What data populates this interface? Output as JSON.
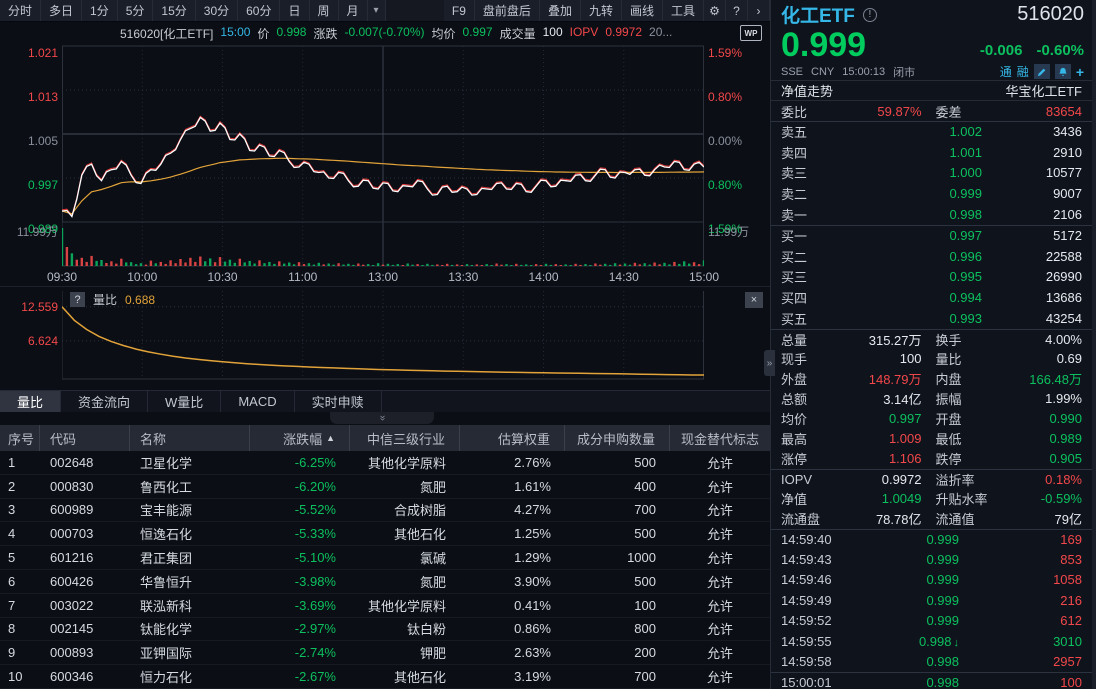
{
  "palette": {
    "red": "#f2484b",
    "green": "#0cc05f",
    "chart_red": "#d84343",
    "chart_green": "#0ba35a",
    "yellow": "#e2a33a",
    "cyan": "#34b7e6",
    "white_line": "#ffffff",
    "big_price_green": "#00cd5e"
  },
  "toolbar": {
    "left_tabs": [
      "分时",
      "多日",
      "1分",
      "5分",
      "15分",
      "30分",
      "60分",
      "日",
      "周",
      "月"
    ],
    "caret": "▾",
    "right_items": [
      "F9",
      "盘前盘后",
      "叠加",
      "九转",
      "画线",
      "工具"
    ],
    "gear": "⚙",
    "help": "?",
    "chevron": "›"
  },
  "chart_info": {
    "segments": [
      {
        "text": "516020[化工ETF]",
        "color": "text"
      },
      {
        "text": "15:00",
        "color": "cyan"
      },
      {
        "text": "价",
        "color": "text"
      },
      {
        "text": "0.998",
        "color": "green"
      },
      {
        "text": "涨跌",
        "color": "text"
      },
      {
        "text": "-0.007(-0.70%)",
        "color": "green"
      },
      {
        "text": "均价",
        "color": "text"
      },
      {
        "text": "0.997",
        "color": "green"
      },
      {
        "text": "成交量",
        "color": "text"
      },
      {
        "text": "100",
        "color": "white"
      },
      {
        "text": "IOPV",
        "color": "red"
      },
      {
        "text": "0.9972",
        "color": "red"
      },
      {
        "text": "20...",
        "color": "dim"
      }
    ],
    "wp_badge": "WP"
  },
  "main_axis": {
    "left": [
      {
        "text": "1.021",
        "color": "red"
      },
      {
        "text": "1.013",
        "color": "red"
      },
      {
        "text": "1.005",
        "color": "dim"
      },
      {
        "text": "0.997",
        "color": "green"
      },
      {
        "text": "0.989",
        "color": "green"
      }
    ],
    "right": [
      {
        "text": "1.59%",
        "color": "red"
      },
      {
        "text": "0.80%",
        "color": "red"
      },
      {
        "text": "0.00%",
        "color": "dim"
      },
      {
        "text": "0.80%",
        "color": "green"
      },
      {
        "text": "1.59%",
        "color": "green"
      }
    ],
    "vol_label": "11.99万",
    "x_ticks": [
      "09:30",
      "10:00",
      "10:30",
      "11:00",
      "13:00",
      "13:30",
      "14:00",
      "14:30",
      "15:00"
    ]
  },
  "subchart": {
    "help": "?",
    "label": "量比",
    "value": "0.688",
    "y_ticks": [
      "12.559",
      "6.624"
    ],
    "close": "×"
  },
  "handles": {
    "down": "»",
    "right": "»"
  },
  "bottom_tabs": [
    {
      "label": "量比",
      "active": true
    },
    {
      "label": "资金流向",
      "active": false
    },
    {
      "label": "W量比",
      "active": false
    },
    {
      "label": "MACD",
      "active": false
    },
    {
      "label": "实时申赎",
      "active": false
    }
  ],
  "table": {
    "headers": [
      "序号",
      "代码",
      "名称",
      "涨跌幅",
      "中信三级行业",
      "估算权重",
      "成分申购数量",
      "现金替代标志"
    ],
    "sort_arrow": "▲",
    "rows": [
      [
        "1",
        "002648",
        "卫星化学",
        "-6.25%",
        "其他化学原料",
        "2.76%",
        "500",
        "允许"
      ],
      [
        "2",
        "000830",
        "鲁西化工",
        "-6.20%",
        "氮肥",
        "1.61%",
        "400",
        "允许"
      ],
      [
        "3",
        "600989",
        "宝丰能源",
        "-5.52%",
        "合成树脂",
        "4.27%",
        "700",
        "允许"
      ],
      [
        "4",
        "000703",
        "恒逸石化",
        "-5.33%",
        "其他石化",
        "1.25%",
        "500",
        "允许"
      ],
      [
        "5",
        "601216",
        "君正集团",
        "-5.10%",
        "氯碱",
        "1.29%",
        "1000",
        "允许"
      ],
      [
        "6",
        "600426",
        "华鲁恒升",
        "-3.98%",
        "氮肥",
        "3.90%",
        "500",
        "允许"
      ],
      [
        "7",
        "003022",
        "联泓新科",
        "-3.69%",
        "其他化学原料",
        "0.41%",
        "100",
        "允许"
      ],
      [
        "8",
        "002145",
        "钛能化学",
        "-2.97%",
        "钛白粉",
        "0.86%",
        "800",
        "允许"
      ],
      [
        "9",
        "000893",
        "亚钾国际",
        "-2.74%",
        "钾肥",
        "2.63%",
        "200",
        "允许"
      ],
      [
        "10",
        "600346",
        "恒力石化",
        "-2.67%",
        "其他石化",
        "3.19%",
        "700",
        "允许"
      ]
    ]
  },
  "quote_panel": {
    "name": "化工ETF",
    "info_icon": "!",
    "code": "516020",
    "price": "0.999",
    "change": "-0.006",
    "change_pct": "-0.60%",
    "status": {
      "exchange": "SSE",
      "currency": "CNY",
      "time": "15:00:13",
      "state": "闭市",
      "badges": [
        "通",
        "融"
      ],
      "plus": "+"
    },
    "nav_row": {
      "left": "净值走势",
      "right": "华宝化工ETF"
    },
    "weibi": {
      "l1": "委比",
      "v1": "59.87%",
      "c1": "red",
      "l2": "委差",
      "v2": "83654",
      "c2": "red"
    },
    "asks": [
      {
        "label": "卖五",
        "price": "1.002",
        "vol": "3436"
      },
      {
        "label": "卖四",
        "price": "1.001",
        "vol": "2910"
      },
      {
        "label": "卖三",
        "price": "1.000",
        "vol": "10577"
      },
      {
        "label": "卖二",
        "price": "0.999",
        "vol": "9007"
      },
      {
        "label": "卖一",
        "price": "0.998",
        "vol": "2106"
      }
    ],
    "bids": [
      {
        "label": "买一",
        "price": "0.997",
        "vol": "5172"
      },
      {
        "label": "买二",
        "price": "0.996",
        "vol": "22588"
      },
      {
        "label": "买三",
        "price": "0.995",
        "vol": "26990"
      },
      {
        "label": "买四",
        "price": "0.994",
        "vol": "13686"
      },
      {
        "label": "买五",
        "price": "0.993",
        "vol": "43254"
      }
    ],
    "stats": [
      {
        "l1": "总量",
        "v1": "315.27万",
        "c1": "white",
        "l2": "换手",
        "v2": "4.00%",
        "c2": "white"
      },
      {
        "l1": "现手",
        "v1": "100",
        "c1": "white",
        "l2": "量比",
        "v2": "0.69",
        "c2": "white"
      },
      {
        "l1": "外盘",
        "v1": "148.79万",
        "c1": "red",
        "l2": "内盘",
        "v2": "166.48万",
        "c2": "green"
      },
      {
        "l1": "总额",
        "v1": "3.14亿",
        "c1": "white",
        "l2": "振幅",
        "v2": "1.99%",
        "c2": "white"
      },
      {
        "l1": "均价",
        "v1": "0.997",
        "c1": "green",
        "l2": "开盘",
        "v2": "0.990",
        "c2": "green"
      },
      {
        "l1": "最高",
        "v1": "1.009",
        "c1": "red",
        "l2": "最低",
        "v2": "0.989",
        "c2": "green"
      },
      {
        "l1": "涨停",
        "v1": "1.106",
        "c1": "red",
        "l2": "跌停",
        "v2": "0.905",
        "c2": "green"
      }
    ],
    "stats2": [
      {
        "l1": "IOPV",
        "v1": "0.9972",
        "c1": "white",
        "l2": "溢折率",
        "v2": "0.18%",
        "c2": "red"
      },
      {
        "l1": "净值",
        "v1": "1.0049",
        "c1": "green",
        "l2": "升贴水率",
        "v2": "-0.59%",
        "c2": "green"
      },
      {
        "l1": "流通盘",
        "v1": "78.78亿",
        "c1": "white",
        "l2": "流通值",
        "v2": "79亿",
        "c2": "white"
      }
    ],
    "ticks": [
      {
        "time": "14:59:40",
        "price": "0.999",
        "pc": "green",
        "vol": "169",
        "vc": "red",
        "arrow": ""
      },
      {
        "time": "14:59:43",
        "price": "0.999",
        "pc": "green",
        "vol": "853",
        "vc": "red",
        "arrow": ""
      },
      {
        "time": "14:59:46",
        "price": "0.999",
        "pc": "green",
        "vol": "1058",
        "vc": "red",
        "arrow": ""
      },
      {
        "time": "14:59:49",
        "price": "0.999",
        "pc": "green",
        "vol": "216",
        "vc": "red",
        "arrow": ""
      },
      {
        "time": "14:59:52",
        "price": "0.999",
        "pc": "green",
        "vol": "612",
        "vc": "red",
        "arrow": ""
      },
      {
        "time": "14:59:55",
        "price": "0.998",
        "pc": "green",
        "vol": "3010",
        "vc": "green",
        "arrow": "↓"
      },
      {
        "time": "14:59:58",
        "price": "0.998",
        "pc": "green",
        "vol": "2957",
        "vc": "red",
        "arrow": ""
      },
      {
        "time": "15:00:01",
        "price": "0.998",
        "pc": "green",
        "vol": "100",
        "vc": "red",
        "arrow": "",
        "separated": true
      }
    ]
  },
  "chart_data": [
    {
      "type": "line",
      "title": "516020 化工ETF 分时走势",
      "x_ticks": [
        "09:30",
        "10:00",
        "10:30",
        "11:00",
        "13:00",
        "13:30",
        "14:00",
        "14:30",
        "15:00"
      ],
      "ylim": [
        0.989,
        1.021
      ],
      "prev_close": 1.005,
      "y_left_ticks": [
        1.021,
        1.013,
        1.005,
        0.997,
        0.989
      ],
      "y_right_ticks_pct": [
        1.59,
        0.8,
        0.0,
        -0.8,
        -1.59
      ],
      "vol_axis_max_label": "11.99万",
      "vol_max": 12.0,
      "price": [
        0.991,
        0.99,
        0.9975,
        0.9995,
        0.9965,
        0.9985,
        1.0,
        0.9975,
        0.996,
        0.9985,
        0.9995,
        1.0015,
        1.004,
        1.006,
        1.008,
        1.0055,
        1.007,
        1.004,
        1.005,
        1.002,
        1.003,
        1.001,
        1.002,
        1.0,
        0.999,
        0.9995,
        0.998,
        0.997,
        0.998,
        0.9965,
        0.9955,
        0.9965,
        0.995,
        0.996,
        0.9945,
        0.9955,
        0.9965,
        0.995,
        0.994,
        0.9955,
        0.9945,
        0.995,
        0.994,
        0.995,
        0.996,
        0.995,
        0.996,
        0.9945,
        0.9955,
        0.9965,
        0.9955,
        0.9965,
        0.9975,
        0.9965,
        0.9975,
        0.9985,
        0.997,
        0.998,
        0.9985,
        0.9975,
        0.9985,
        0.999,
        1.0,
        0.9985,
        0.9995,
        0.999
      ],
      "volume": [
        11.99,
        4.0,
        2.6,
        3.2,
        1.9,
        1.5,
        2.3,
        1.2,
        0.9,
        1.7,
        1.3,
        1.8,
        2.2,
        2.6,
        3.0,
        2.4,
        2.8,
        2.0,
        2.3,
        1.6,
        1.8,
        1.3,
        1.5,
        1.1,
        1.2,
        0.9,
        1.0,
        0.8,
        0.9,
        0.7,
        0.8,
        0.6,
        0.9,
        0.7,
        0.6,
        0.8,
        0.6,
        0.7,
        0.5,
        0.7,
        0.5,
        0.6,
        0.5,
        0.6,
        0.8,
        0.6,
        0.7,
        0.5,
        0.6,
        0.7,
        0.6,
        0.5,
        0.7,
        0.6,
        0.8,
        0.7,
        0.9,
        0.8,
        1.0,
        0.9,
        1.1,
        1.0,
        1.3,
        1.5,
        1.2,
        1.8
      ]
    },
    {
      "type": "line",
      "title": "量比",
      "current_value": 0.688,
      "y_ticks": [
        12.559,
        6.624
      ],
      "ylim": [
        0,
        13.2
      ],
      "values": [
        12.559,
        10.2,
        8.6,
        7.4,
        6.5,
        5.8,
        5.2,
        4.7,
        4.3,
        3.95,
        3.65,
        3.4,
        3.2,
        3.0,
        2.82,
        2.66,
        2.52,
        2.4,
        2.28,
        2.18,
        2.08,
        2.0,
        1.92,
        1.84,
        1.77,
        1.7,
        1.64,
        1.58,
        1.53,
        1.48,
        1.43,
        1.38,
        1.34,
        1.3,
        1.26,
        1.22,
        1.18,
        1.15,
        1.11,
        1.08,
        1.05,
        1.02,
        0.99,
        0.96,
        0.93,
        0.9,
        0.87,
        0.84,
        0.8,
        0.76,
        0.73,
        0.7,
        0.688
      ]
    }
  ]
}
